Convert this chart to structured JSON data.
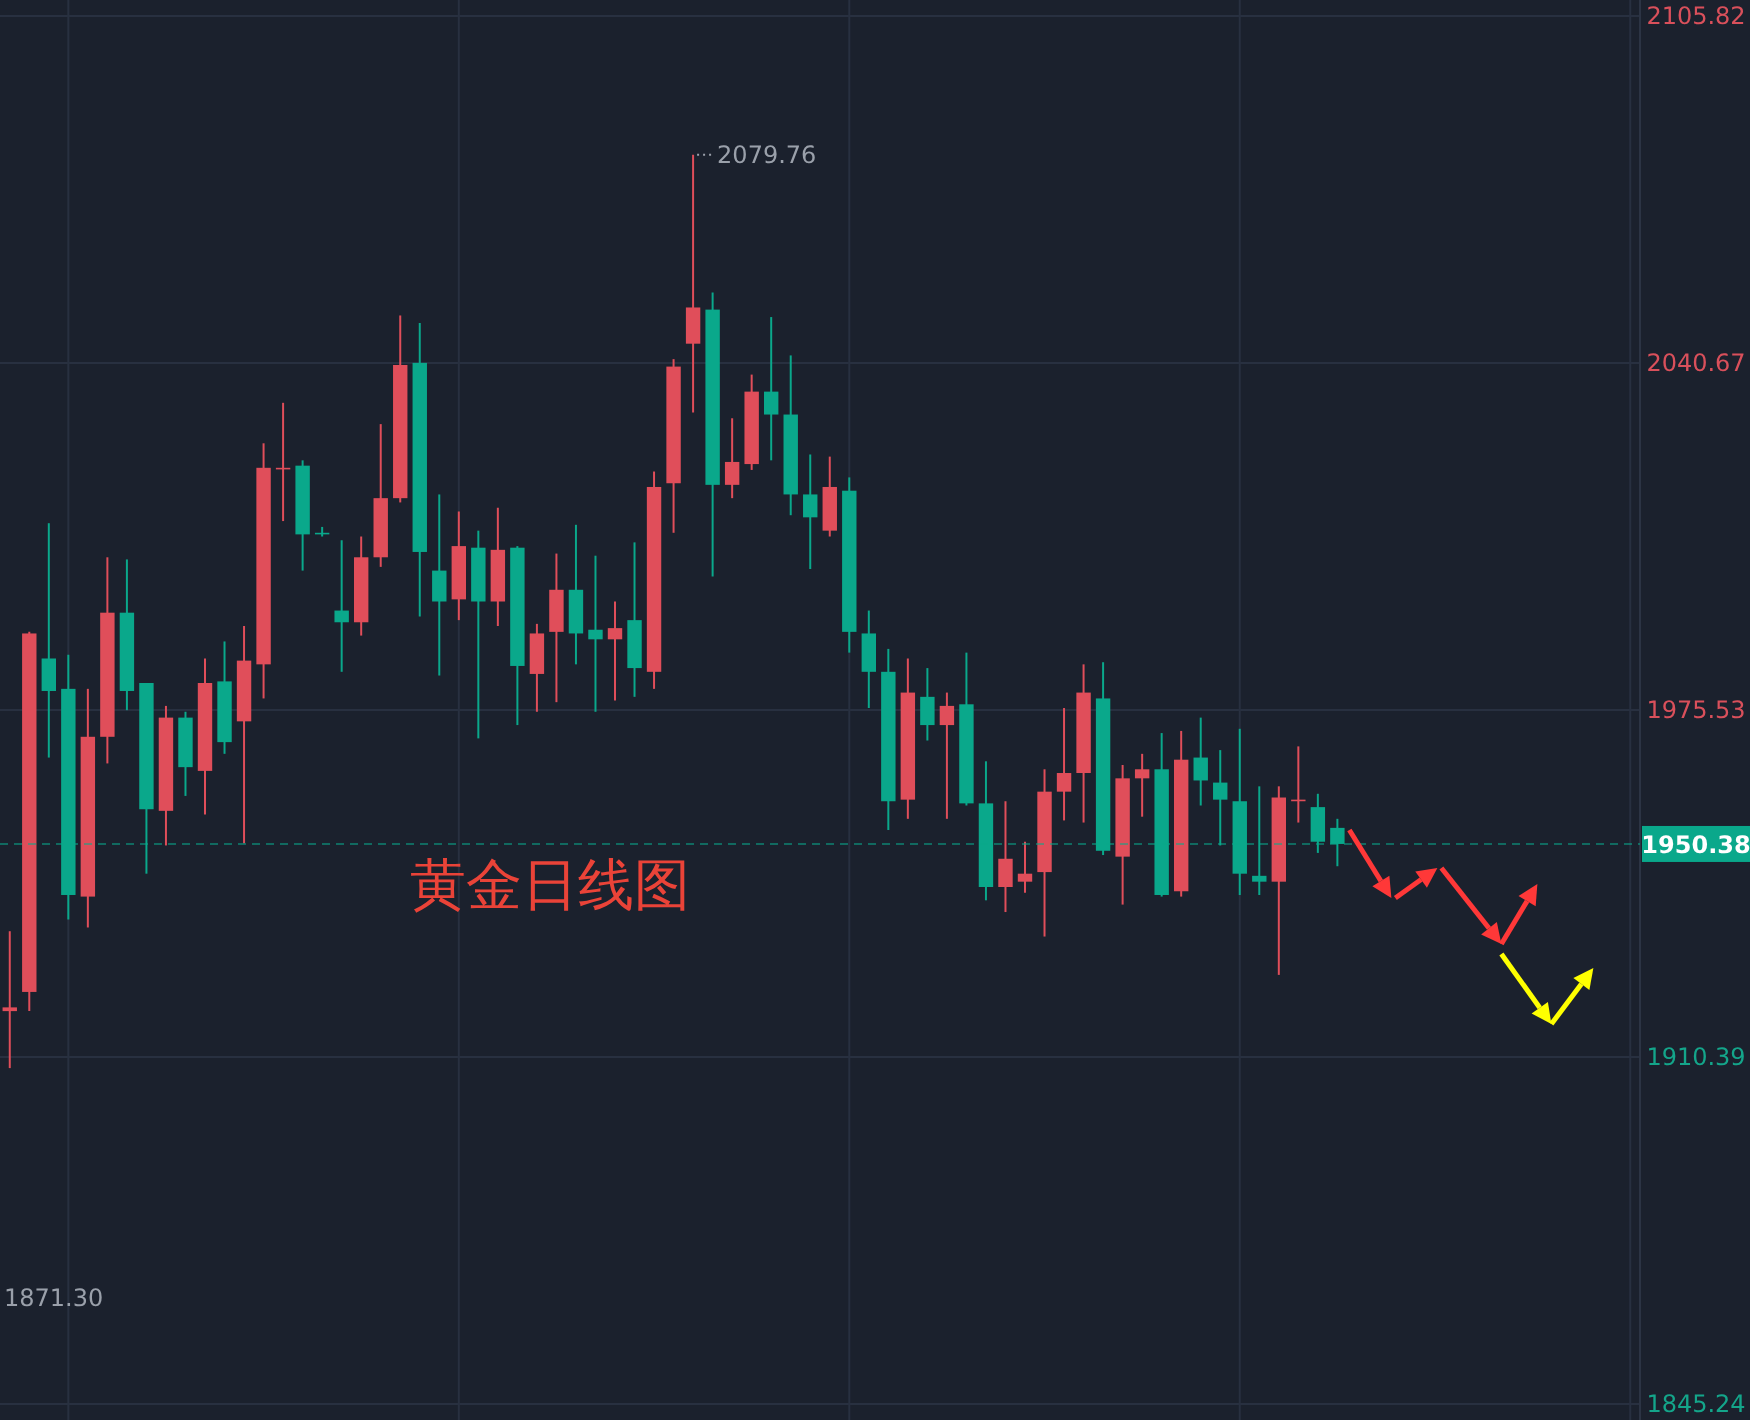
{
  "chart_data": {
    "type": "candlestick",
    "title": "黄金日线图",
    "categories": [
      null,
      null,
      null,
      null,
      null,
      null,
      null,
      null,
      null,
      null,
      null,
      null,
      null,
      null,
      null,
      null,
      null,
      null,
      null,
      null,
      null,
      null,
      null,
      null,
      null,
      null,
      null,
      null,
      null,
      null,
      null,
      null,
      null,
      null,
      null,
      null,
      null,
      null,
      null,
      null,
      null,
      null,
      null,
      null,
      null,
      null,
      null,
      null,
      null,
      null,
      null,
      null,
      null,
      null,
      null,
      null,
      null,
      null,
      null,
      null,
      null,
      null,
      null,
      null,
      null,
      null,
      null,
      null,
      null,
      null,
      null,
      null,
      null,
      null,
      null,
      null,
      null,
      null,
      null,
      null,
      null,
      null,
      null,
      null
    ],
    "ohlc": [
      [
        1919.0,
        1934.0,
        1908.3,
        1919.7
      ],
      [
        1922.6,
        1990.2,
        1919.0,
        1989.9
      ],
      [
        1985.2,
        2010.6,
        1966.6,
        1979.1
      ],
      [
        1979.5,
        1985.9,
        1936.2,
        1940.8
      ],
      [
        1940.5,
        1979.5,
        1934.7,
        1970.5
      ],
      [
        1970.5,
        2004.2,
        1965.5,
        1993.8
      ],
      [
        1993.8,
        2003.8,
        1975.5,
        1979.1
      ],
      [
        1980.6,
        1980.6,
        1944.8,
        1956.9
      ],
      [
        1956.6,
        1976.3,
        1950.1,
        1974.1
      ],
      [
        1974.1,
        1975.2,
        1959.4,
        1964.8
      ],
      [
        1964.1,
        1985.2,
        1955.9,
        1980.6
      ],
      [
        1980.9,
        1988.4,
        1967.3,
        1969.5
      ],
      [
        1973.4,
        1991.3,
        1950.5,
        1984.8
      ],
      [
        1984.1,
        2025.6,
        1977.7,
        2021.0
      ],
      [
        2020.8,
        2033.2,
        2011.0,
        2021.0
      ],
      [
        2021.4,
        2022.4,
        2001.7,
        2008.5
      ],
      [
        2008.8,
        2009.9,
        2008.1,
        2008.5
      ],
      [
        1994.2,
        2007.4,
        1982.7,
        1992.0
      ],
      [
        1992.0,
        2008.1,
        1989.5,
        2004.2
      ],
      [
        2004.2,
        2029.2,
        2002.4,
        2015.3
      ],
      [
        2015.3,
        2049.6,
        2014.5,
        2040.3
      ],
      [
        2040.7,
        2048.2,
        1993.1,
        2005.2
      ],
      [
        2001.7,
        2016.0,
        1982.0,
        1995.9
      ],
      [
        1996.3,
        2012.8,
        1992.4,
        2006.3
      ],
      [
        2006.0,
        2009.2,
        1970.2,
        1995.9
      ],
      [
        1995.9,
        2013.5,
        1991.3,
        2005.6
      ],
      [
        2006.0,
        2006.3,
        1972.7,
        1983.8
      ],
      [
        1982.3,
        1991.7,
        1975.2,
        1989.9
      ],
      [
        1990.2,
        2004.9,
        1977.0,
        1998.1
      ],
      [
        1998.1,
        2010.3,
        1984.1,
        1989.9
      ],
      [
        1990.6,
        2004.5,
        1975.2,
        1988.8
      ],
      [
        1988.8,
        1995.9,
        1977.3,
        1990.9
      ],
      [
        1992.4,
        2007.0,
        1978.0,
        1983.4
      ],
      [
        1982.7,
        2020.3,
        1979.5,
        2017.4
      ],
      [
        2018.1,
        2041.4,
        2008.8,
        2040.0
      ],
      [
        2044.3,
        2079.76,
        2031.4,
        2051.1
      ],
      [
        2050.7,
        2053.9,
        2000.6,
        2017.8
      ],
      [
        2017.8,
        2030.3,
        2015.3,
        2022.1
      ],
      [
        2021.7,
        2038.5,
        2020.6,
        2035.3
      ],
      [
        2035.3,
        2049.3,
        2022.4,
        2031.0
      ],
      [
        2031.0,
        2042.1,
        2012.1,
        2016.0
      ],
      [
        2016.0,
        2023.5,
        2002.0,
        2011.7
      ],
      [
        2009.2,
        2023.1,
        2008.1,
        2017.4
      ],
      [
        2016.7,
        2019.2,
        1986.3,
        1990.2
      ],
      [
        1989.9,
        1994.2,
        1975.9,
        1982.7
      ],
      [
        1982.7,
        1987.0,
        1953.0,
        1958.4
      ],
      [
        1958.7,
        1985.2,
        1955.1,
        1978.8
      ],
      [
        1978.0,
        1983.4,
        1969.8,
        1972.7
      ],
      [
        1972.7,
        1978.8,
        1955.1,
        1976.3
      ],
      [
        1976.6,
        1986.3,
        1957.6,
        1958.0
      ],
      [
        1958.0,
        1965.9,
        1939.8,
        1942.3
      ],
      [
        1942.3,
        1958.4,
        1937.6,
        1947.6
      ],
      [
        1943.3,
        1950.8,
        1941.2,
        1944.8
      ],
      [
        1945.1,
        1964.4,
        1933.0,
        1960.2
      ],
      [
        1960.2,
        1975.9,
        1954.8,
        1963.7
      ],
      [
        1963.7,
        1984.1,
        1954.4,
        1978.8
      ],
      [
        1977.7,
        1984.5,
        1948.3,
        1949.1
      ],
      [
        1948.0,
        1965.2,
        1939.0,
        1962.7
      ],
      [
        1962.7,
        1967.3,
        1955.5,
        1964.4
      ],
      [
        1964.4,
        1971.2,
        1940.5,
        1940.8
      ],
      [
        1941.5,
        1971.6,
        1940.5,
        1966.2
      ],
      [
        1966.6,
        1974.1,
        1957.6,
        1962.3
      ],
      [
        1961.9,
        1968.0,
        1950.1,
        1958.7
      ],
      [
        1958.4,
        1972.0,
        1940.8,
        1944.8
      ],
      [
        1944.4,
        1961.2,
        1940.8,
        1943.3
      ],
      [
        1943.3,
        1961.2,
        1925.8,
        1959.1
      ],
      [
        1958.5,
        1968.7,
        1954.4,
        1958.7
      ],
      [
        1957.3,
        1959.8,
        1948.7,
        1950.8
      ],
      [
        1953.4,
        1955.1,
        1946.2,
        1950.38
      ],
      null,
      null,
      null,
      null,
      null,
      null,
      null,
      null,
      null,
      null,
      null,
      null,
      null,
      null,
      null
    ],
    "colors": [
      "#e04e5a",
      "#e04e5a",
      "#0aa88b",
      "#0aa88b",
      "#e04e5a",
      "#e04e5a",
      "#0aa88b",
      "#0aa88b",
      "#e04e5a",
      "#0aa88b",
      "#e04e5a",
      "#0aa88b",
      "#e04e5a",
      "#e04e5a",
      "#e04e5a",
      "#0aa88b",
      "#0aa88b",
      "#0aa88b",
      "#e04e5a",
      "#e04e5a",
      "#e04e5a",
      "#0aa88b",
      "#0aa88b",
      "#e04e5a",
      "#0aa88b",
      "#e04e5a",
      "#0aa88b",
      "#e04e5a",
      "#e04e5a",
      "#0aa88b",
      "#0aa88b",
      "#e04e5a",
      "#0aa88b",
      "#e04e5a",
      "#e04e5a",
      "#e04e5a",
      "#0aa88b",
      "#e04e5a",
      "#e04e5a",
      "#0aa88b",
      "#0aa88b",
      "#0aa88b",
      "#e04e5a",
      "#0aa88b",
      "#0aa88b",
      "#0aa88b",
      "#e04e5a",
      "#0aa88b",
      "#e04e5a",
      "#0aa88b",
      "#0aa88b",
      "#e04e5a",
      "#e04e5a",
      "#e04e5a",
      "#e04e5a",
      "#e04e5a",
      "#0aa88b",
      "#e04e5a",
      "#e04e5a",
      "#0aa88b",
      "#e04e5a",
      "#0aa88b",
      "#0aa88b",
      "#0aa88b",
      "#0aa88b",
      "#e04e5a",
      "#e04e5a",
      "#0aa88b",
      "#0aa88b",
      null,
      null,
      null,
      null,
      null,
      null,
      null,
      null,
      null,
      null,
      null,
      null,
      null,
      null,
      null
    ],
    "ylim": [
      1845.24,
      2105.82
    ],
    "yticks": [
      1845.24,
      1910.39,
      1975.53,
      2040.67,
      2105.82
    ],
    "grid": true,
    "ref_lines": [
      {
        "axis": "y",
        "value": 1950.38,
        "label": "1950.38",
        "color": "#0aa88b",
        "line_style": "dashed"
      }
    ],
    "annotations": [
      "2079.76",
      "1871.30"
    ]
  }
}
